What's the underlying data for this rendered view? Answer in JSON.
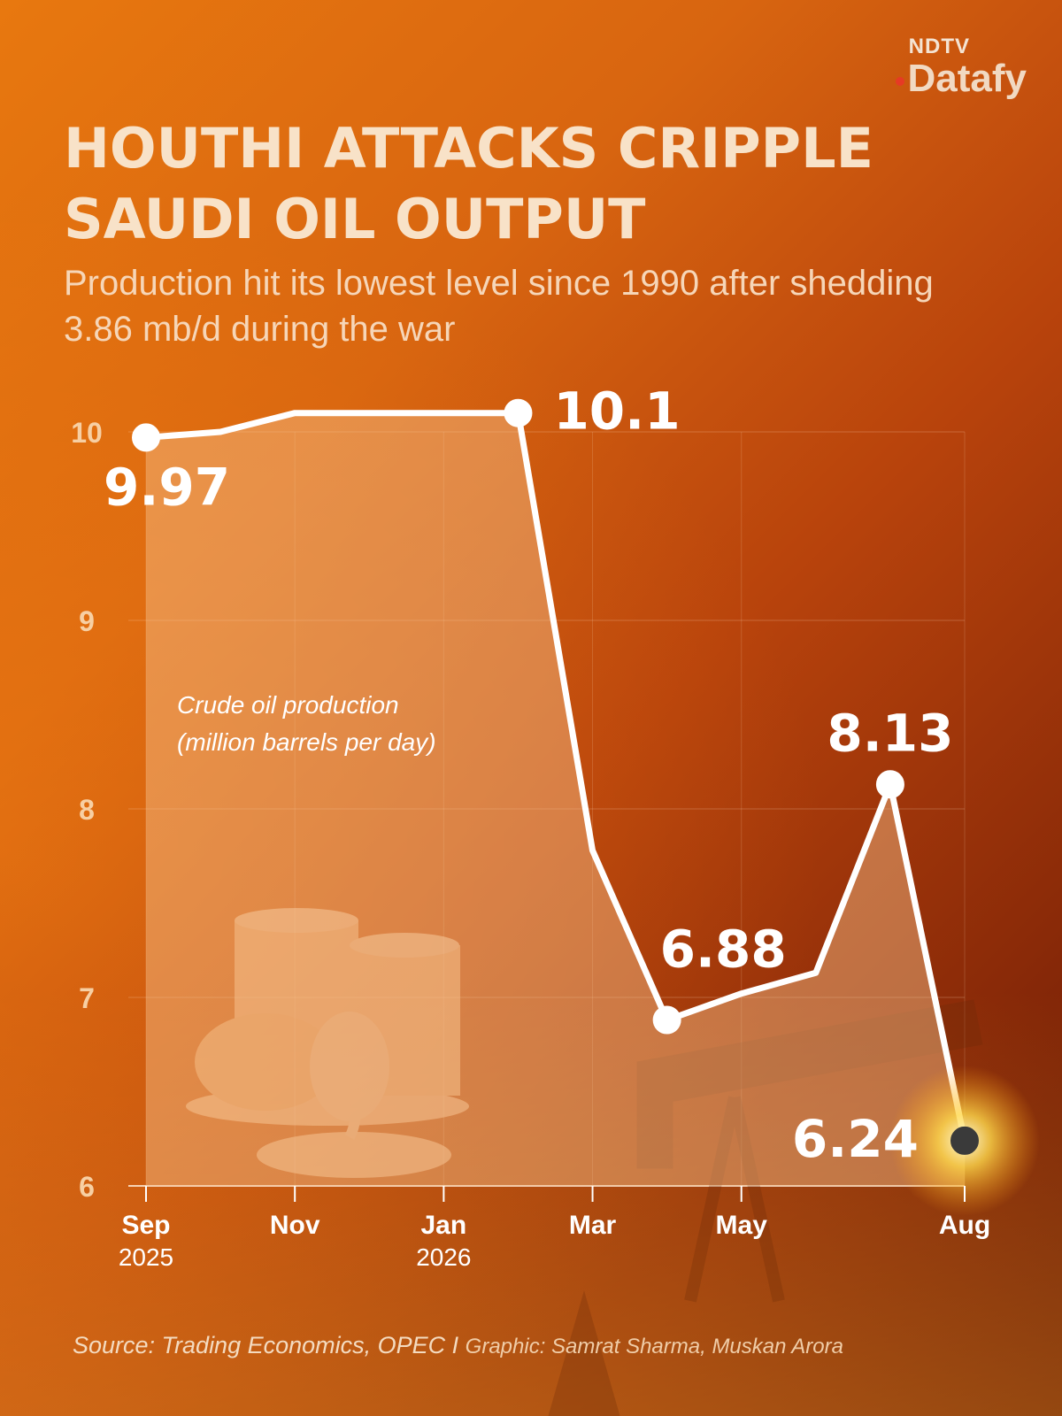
{
  "branding": {
    "top": "NDTV",
    "main": "Datafy"
  },
  "header": {
    "title": "HOUTHI ATTACKS CRIPPLE SAUDI OIL OUTPUT",
    "subtitle": "Production hit its lowest level since 1990 after shedding 3.86 mb/d during the war"
  },
  "chart_data": {
    "type": "area",
    "ylabel": "Crude oil production (million barrels per day)",
    "ylabel_lines": [
      "Crude oil production",
      "(million barrels per day)"
    ],
    "ylim": [
      6,
      10.7
    ],
    "yticks": [
      6,
      7,
      8,
      9,
      10
    ],
    "grid": true,
    "x_ticks": [
      {
        "label": "Sep",
        "sublabel": "2025",
        "x": 0
      },
      {
        "label": "Nov",
        "sublabel": "",
        "x": 2
      },
      {
        "label": "Jan",
        "sublabel": "2026",
        "x": 4
      },
      {
        "label": "Mar",
        "sublabel": "",
        "x": 6
      },
      {
        "label": "May",
        "sublabel": "",
        "x": 8
      },
      {
        "label": "Aug",
        "sublabel": "",
        "x": 11
      }
    ],
    "series": [
      {
        "points": [
          {
            "x": 0,
            "y": 9.97
          },
          {
            "x": 1,
            "y": 10.0
          },
          {
            "x": 2,
            "y": 10.1
          },
          {
            "x": 3,
            "y": 10.1
          },
          {
            "x": 4,
            "y": 10.1
          },
          {
            "x": 5,
            "y": 10.1
          },
          {
            "x": 6,
            "y": 7.78
          },
          {
            "x": 7,
            "y": 6.88
          },
          {
            "x": 8,
            "y": 7.02
          },
          {
            "x": 9,
            "y": 7.13
          },
          {
            "x": 10,
            "y": 8.13
          },
          {
            "x": 11,
            "y": 6.24
          }
        ]
      }
    ],
    "annotations": [
      {
        "x": 0,
        "y": 9.97,
        "text": "9.97",
        "position": "below-right"
      },
      {
        "x": 5,
        "y": 10.1,
        "text": "10.1",
        "position": "right"
      },
      {
        "x": 7,
        "y": 6.88,
        "text": "6.88",
        "position": "above-right"
      },
      {
        "x": 10,
        "y": 8.13,
        "text": "8.13",
        "position": "above"
      },
      {
        "x": 11,
        "y": 6.24,
        "text": "6.24",
        "position": "left"
      }
    ],
    "colors": {
      "line": "#ffffff",
      "area": "#f6c28c",
      "tick_labels": "#f7cfa3",
      "last_marker": "#3a3a3a"
    }
  },
  "footer": {
    "source": "Source: Trading Economics, OPEC I ",
    "graphic": "Graphic: Samrat Sharma, Muskan Arora"
  }
}
